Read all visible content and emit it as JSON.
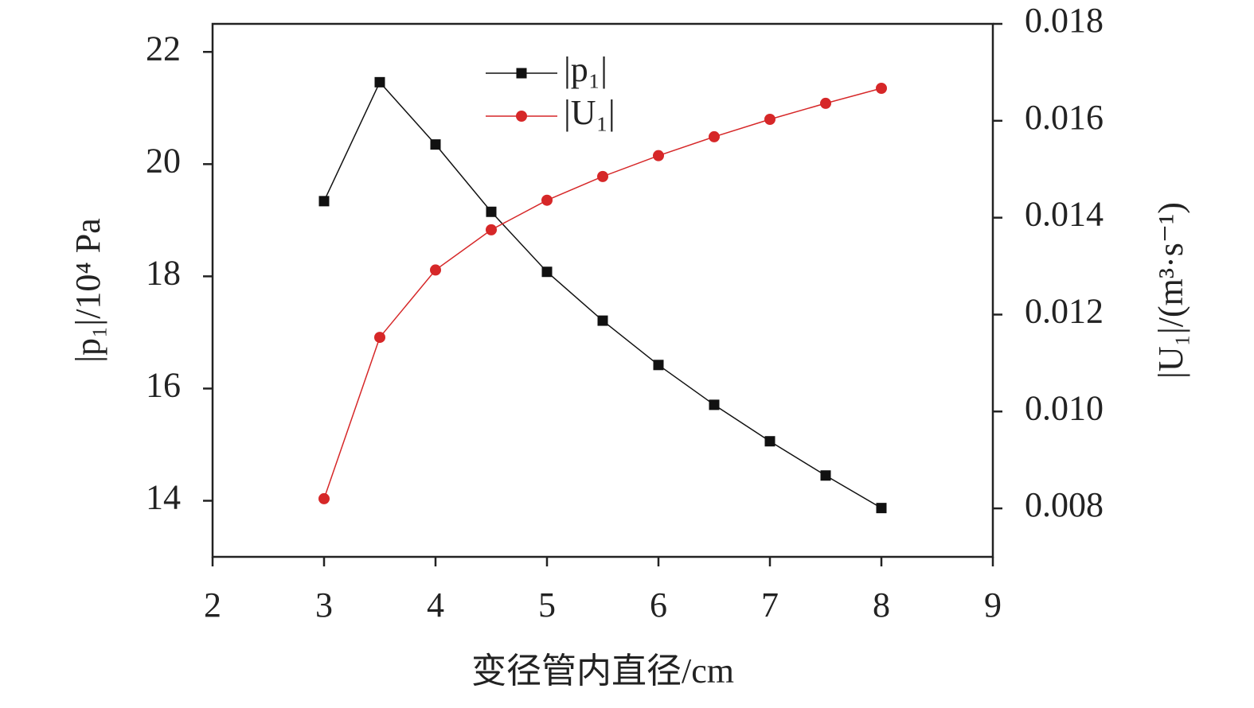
{
  "chart_data": {
    "type": "line",
    "x_label": "变径管内直径/cm",
    "y_label": "|p₁|/10⁴ Pa",
    "y2_label": "|U₁|/(m³·s⁻¹)",
    "x": [
      3,
      3.5,
      4,
      4.5,
      5,
      5.5,
      6,
      6.5,
      7,
      7.5,
      8
    ],
    "xlim": [
      2,
      9
    ],
    "xticks": [
      2,
      3,
      4,
      5,
      6,
      7,
      8,
      9
    ],
    "ylim": [
      13,
      22.5
    ],
    "yticks": [
      14,
      16,
      18,
      20,
      22
    ],
    "y2lim": [
      0.007,
      0.018
    ],
    "y2ticks": [
      0.008,
      {
        "value": 0.01,
        "label": "0.010"
      },
      0.012,
      0.014,
      0.016,
      0.018
    ],
    "legend": "upper center",
    "series": [
      {
        "name": "|p₁|",
        "color": "#111111",
        "marker": "square",
        "values": [
          19.34,
          21.46,
          20.35,
          19.15,
          18.08,
          17.21,
          16.42,
          15.71,
          15.06,
          14.45,
          13.87
        ]
      },
      {
        "name": "|U₁|",
        "color": "#d62728",
        "marker": "circle",
        "axis": "y2",
        "values": [
          0.0082,
          0.01153,
          0.01292,
          0.01375,
          0.01436,
          0.01485,
          0.01528,
          0.01567,
          0.01603,
          0.01636,
          0.01667
        ]
      }
    ]
  }
}
